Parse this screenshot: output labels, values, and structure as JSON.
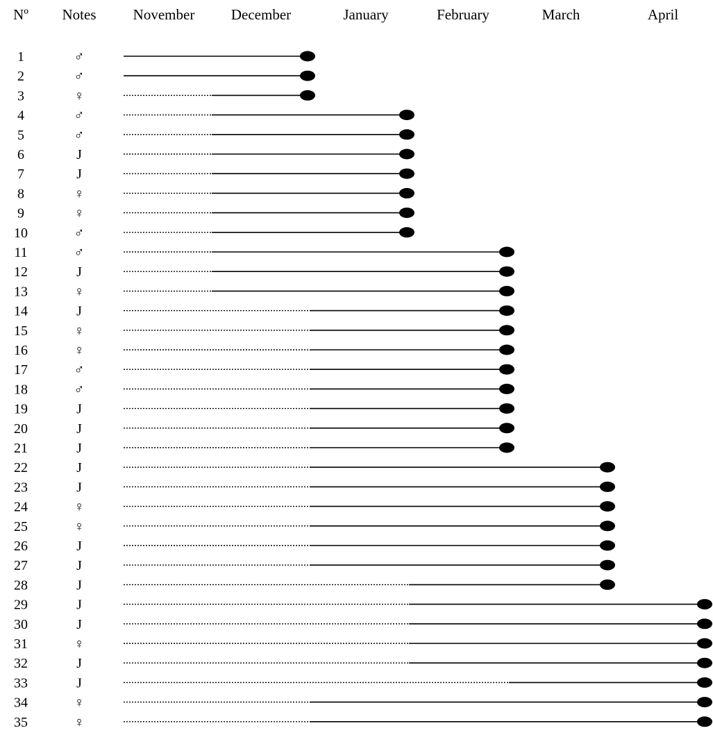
{
  "chart_data": {
    "type": "gantt",
    "headers": {
      "number": "Nº",
      "notes": "Notes",
      "months": [
        "November",
        "December",
        "January",
        "February",
        "March",
        "April"
      ]
    },
    "rows": [
      {
        "n": "1",
        "note": "♂",
        "dotted": [],
        "solid": [
          "November",
          "December"
        ],
        "dot": "December"
      },
      {
        "n": "2",
        "note": "♂",
        "dotted": [],
        "solid": [
          "November",
          "December"
        ],
        "dot": "December"
      },
      {
        "n": "3",
        "note": "♀",
        "dotted": [
          "November"
        ],
        "solid": [
          "December"
        ],
        "dot": "December"
      },
      {
        "n": "4",
        "note": "♂",
        "dotted": [
          "November"
        ],
        "solid": [
          "December",
          "January"
        ],
        "dot": "January"
      },
      {
        "n": "5",
        "note": "♂",
        "dotted": [
          "November"
        ],
        "solid": [
          "December",
          "January"
        ],
        "dot": "January"
      },
      {
        "n": "6",
        "note": "J",
        "dotted": [
          "November"
        ],
        "solid": [
          "December",
          "January"
        ],
        "dot": "January"
      },
      {
        "n": "7",
        "note": "J",
        "dotted": [
          "November"
        ],
        "solid": [
          "December",
          "January"
        ],
        "dot": "January"
      },
      {
        "n": "8",
        "note": "♀",
        "dotted": [
          "November"
        ],
        "solid": [
          "December",
          "January"
        ],
        "dot": "January"
      },
      {
        "n": "9",
        "note": "♀",
        "dotted": [
          "November"
        ],
        "solid": [
          "December",
          "January"
        ],
        "dot": "January"
      },
      {
        "n": "10",
        "note": "♂",
        "dotted": [
          "November"
        ],
        "solid": [
          "December",
          "January"
        ],
        "dot": "January"
      },
      {
        "n": "11",
        "note": "♂",
        "dotted": [
          "November"
        ],
        "solid": [
          "December",
          "January",
          "February"
        ],
        "dot": "February"
      },
      {
        "n": "12",
        "note": "J",
        "dotted": [
          "November"
        ],
        "solid": [
          "December",
          "January",
          "February"
        ],
        "dot": "February"
      },
      {
        "n": "13",
        "note": "♀",
        "dotted": [
          "November"
        ],
        "solid": [
          "December",
          "January",
          "February"
        ],
        "dot": "February"
      },
      {
        "n": "14",
        "note": "J",
        "dotted": [
          "November",
          "December"
        ],
        "solid": [
          "January",
          "February"
        ],
        "dot": "February"
      },
      {
        "n": "15",
        "note": "♀",
        "dotted": [
          "November",
          "December"
        ],
        "solid": [
          "January",
          "February"
        ],
        "dot": "February"
      },
      {
        "n": "16",
        "note": "♀",
        "dotted": [
          "November",
          "December"
        ],
        "solid": [
          "January",
          "February"
        ],
        "dot": "February"
      },
      {
        "n": "17",
        "note": "♂",
        "dotted": [
          "November",
          "December"
        ],
        "solid": [
          "January",
          "February"
        ],
        "dot": "February"
      },
      {
        "n": "18",
        "note": "♂",
        "dotted": [
          "November",
          "December"
        ],
        "solid": [
          "January",
          "February"
        ],
        "dot": "February"
      },
      {
        "n": "19",
        "note": "J",
        "dotted": [
          "November",
          "December"
        ],
        "solid": [
          "January",
          "February"
        ],
        "dot": "February"
      },
      {
        "n": "20",
        "note": "J",
        "dotted": [
          "November",
          "December"
        ],
        "solid": [
          "January",
          "February"
        ],
        "dot": "February"
      },
      {
        "n": "21",
        "note": "J",
        "dotted": [
          "November",
          "December"
        ],
        "solid": [
          "January",
          "February"
        ],
        "dot": "February"
      },
      {
        "n": "22",
        "note": "J",
        "dotted": [
          "November",
          "December"
        ],
        "solid": [
          "January",
          "February",
          "March"
        ],
        "dot": "March"
      },
      {
        "n": "23",
        "note": "J",
        "dotted": [
          "November",
          "December"
        ],
        "solid": [
          "January",
          "February",
          "March"
        ],
        "dot": "March"
      },
      {
        "n": "24",
        "note": "♀",
        "dotted": [
          "November",
          "December"
        ],
        "solid": [
          "January",
          "February",
          "March"
        ],
        "dot": "March"
      },
      {
        "n": "25",
        "note": "♀",
        "dotted": [
          "November",
          "December"
        ],
        "solid": [
          "January",
          "February",
          "March"
        ],
        "dot": "March"
      },
      {
        "n": "26",
        "note": "J",
        "dotted": [
          "November",
          "December"
        ],
        "solid": [
          "January",
          "February",
          "March"
        ],
        "dot": "March"
      },
      {
        "n": "27",
        "note": "J",
        "dotted": [
          "November",
          "December"
        ],
        "solid": [
          "January",
          "February",
          "March"
        ],
        "dot": "March"
      },
      {
        "n": "28",
        "note": "J",
        "dotted": [
          "November",
          "December",
          "January"
        ],
        "solid": [
          "February",
          "March"
        ],
        "dot": "March"
      },
      {
        "n": "29",
        "note": "J",
        "dotted": [
          "November",
          "December",
          "January"
        ],
        "solid": [
          "February",
          "March",
          "April"
        ],
        "dot": "April"
      },
      {
        "n": "30",
        "note": "J",
        "dotted": [
          "November",
          "December",
          "January"
        ],
        "solid": [
          "February",
          "March",
          "April"
        ],
        "dot": "April"
      },
      {
        "n": "31",
        "note": "♀",
        "dotted": [
          "November",
          "December",
          "January"
        ],
        "solid": [
          "February",
          "March",
          "April"
        ],
        "dot": "April"
      },
      {
        "n": "32",
        "note": "J",
        "dotted": [
          "November",
          "December",
          "January"
        ],
        "solid": [
          "February",
          "March",
          "April"
        ],
        "dot": "April"
      },
      {
        "n": "33",
        "note": "J",
        "dotted": [
          "November",
          "December",
          "January",
          "February"
        ],
        "solid": [
          "March",
          "April"
        ],
        "dot": "April"
      },
      {
        "n": "34",
        "note": "♀",
        "dotted": [
          "November",
          "December"
        ],
        "solid": [
          "January",
          "February",
          "March",
          "April"
        ],
        "dot": "April"
      },
      {
        "n": "35",
        "note": "♀",
        "dotted": [
          "November",
          "December"
        ],
        "solid": [
          "January",
          "February",
          "March",
          "April"
        ],
        "dot": "April"
      }
    ]
  }
}
